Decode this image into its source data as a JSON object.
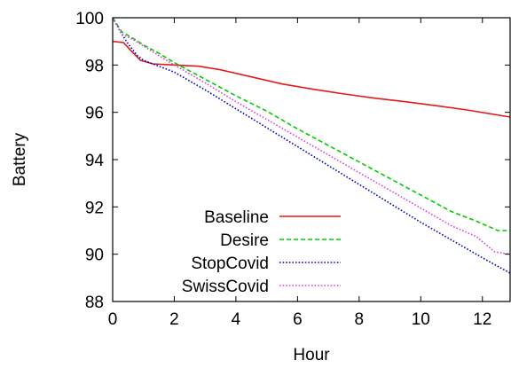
{
  "chart_data": {
    "type": "line",
    "xlabel": "Hour",
    "ylabel": "Battery",
    "xlim": [
      0,
      12.9
    ],
    "ylim": [
      88,
      100
    ],
    "xticks": [
      0,
      2,
      4,
      6,
      8,
      10,
      12
    ],
    "yticks": [
      88,
      90,
      92,
      94,
      96,
      98,
      100
    ],
    "grid": false,
    "legend_position": "bottom-left",
    "series": [
      {
        "name": "Baseline",
        "color": "#e41a1c",
        "dash": "solid",
        "points": [
          [
            0,
            99.0
          ],
          [
            0.35,
            98.95
          ],
          [
            0.6,
            98.6
          ],
          [
            0.9,
            98.2
          ],
          [
            1.3,
            98.05
          ],
          [
            2.0,
            98.0
          ],
          [
            2.8,
            97.95
          ],
          [
            3.5,
            97.8
          ],
          [
            4.5,
            97.5
          ],
          [
            5.5,
            97.2
          ],
          [
            6.5,
            96.98
          ],
          [
            7.5,
            96.78
          ],
          [
            8.5,
            96.6
          ],
          [
            9.5,
            96.45
          ],
          [
            10.5,
            96.28
          ],
          [
            11.5,
            96.1
          ],
          [
            12.9,
            95.8
          ]
        ]
      },
      {
        "name": "Desire",
        "color": "#00cc00",
        "dash": "dashed",
        "points": [
          [
            0,
            100
          ],
          [
            0.3,
            99.4
          ],
          [
            0.7,
            99.1
          ],
          [
            1.0,
            98.85
          ],
          [
            1.5,
            98.5
          ],
          [
            2.0,
            98.1
          ],
          [
            3.0,
            97.4
          ],
          [
            4.0,
            96.7
          ],
          [
            5.0,
            96.05
          ],
          [
            6.0,
            95.3
          ],
          [
            7.0,
            94.6
          ],
          [
            8.0,
            93.9
          ],
          [
            9.0,
            93.2
          ],
          [
            10.0,
            92.5
          ],
          [
            11.0,
            91.8
          ],
          [
            11.8,
            91.4
          ],
          [
            12.5,
            91.0
          ],
          [
            12.9,
            91.0
          ]
        ]
      },
      {
        "name": "StopCovid",
        "color": "#0000cc",
        "dash": "dotted",
        "points": [
          [
            0,
            100
          ],
          [
            0.25,
            99.4
          ],
          [
            0.5,
            98.9
          ],
          [
            0.8,
            98.4
          ],
          [
            1.0,
            98.2
          ],
          [
            1.5,
            97.95
          ],
          [
            2.0,
            97.7
          ],
          [
            3.0,
            96.95
          ],
          [
            4.0,
            96.15
          ],
          [
            5.0,
            95.35
          ],
          [
            6.0,
            94.55
          ],
          [
            7.0,
            93.75
          ],
          [
            8.0,
            92.95
          ],
          [
            9.0,
            92.15
          ],
          [
            10.0,
            91.35
          ],
          [
            11.0,
            90.6
          ],
          [
            12.0,
            89.85
          ],
          [
            12.9,
            89.2
          ]
        ]
      },
      {
        "name": "SwissCovid",
        "color": "#e040e0",
        "dash": "dotted",
        "points": [
          [
            0,
            100
          ],
          [
            0.3,
            99.3
          ],
          [
            0.7,
            99.05
          ],
          [
            1.0,
            98.8
          ],
          [
            1.5,
            98.4
          ],
          [
            2.0,
            98.0
          ],
          [
            3.0,
            97.25
          ],
          [
            4.0,
            96.45
          ],
          [
            5.0,
            95.7
          ],
          [
            6.0,
            94.95
          ],
          [
            7.0,
            94.2
          ],
          [
            8.0,
            93.45
          ],
          [
            9.0,
            92.7
          ],
          [
            10.0,
            91.95
          ],
          [
            11.0,
            91.2
          ],
          [
            11.8,
            90.75
          ],
          [
            12.4,
            90.1
          ],
          [
            12.9,
            90.0
          ]
        ]
      }
    ]
  }
}
